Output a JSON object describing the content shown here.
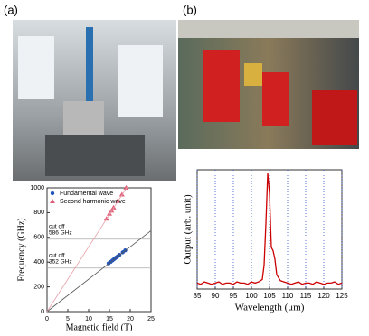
{
  "panel_labels": [
    "(a)",
    "(b)"
  ],
  "chart_data": [
    {
      "type": "scatter",
      "xlabel": "Magnetic field (T)",
      "ylabel": "Frequency (GHz)",
      "xlim": [
        0,
        25
      ],
      "xticks": [
        0,
        5,
        10,
        15,
        20,
        25
      ],
      "ylim": [
        0,
        1000
      ],
      "yticks": [
        0,
        200,
        400,
        600,
        800,
        1000
      ],
      "series": [
        {
          "name": "Fundamental wave",
          "color": "#2255bb",
          "style": "circle",
          "x": [
            14.8,
            15.3,
            15.7,
            16,
            16.3,
            16.6,
            17,
            17.4,
            18.2,
            18.8
          ],
          "values": [
            390,
            402,
            413,
            421,
            429,
            437,
            447,
            458,
            479,
            495
          ]
        },
        {
          "name": "Second harmonic wave",
          "color": "#e0607a",
          "style": "triangle",
          "x": [
            14.3,
            15,
            15.5,
            16,
            17,
            18,
            19
          ],
          "values": [
            750,
            790,
            815,
            840,
            895,
            945,
            1000
          ]
        },
        {
          "color": "#555555",
          "style": "line",
          "x": [
            0,
            25
          ],
          "values": [
            0,
            655
          ]
        },
        {
          "color": "#e8a0a8",
          "style": "line",
          "x": [
            0,
            19.5
          ],
          "values": [
            0,
            1020
          ]
        }
      ],
      "cutoffs": [
        {
          "value": 586,
          "label": [
            "cut off",
            "586 GHz"
          ]
        },
        {
          "value": 352,
          "label": [
            "cut off",
            "352 GHz"
          ]
        }
      ]
    },
    {
      "type": "line",
      "xlabel": "Wavelength (μm)",
      "ylabel": "Output (arb. unit)",
      "xlim": [
        85,
        125
      ],
      "xticks": [
        85,
        90,
        95,
        100,
        105,
        110,
        115,
        120,
        125
      ],
      "ylim": [
        0,
        1
      ],
      "grid": true,
      "series": [
        {
          "color": "#cc0000",
          "x": [
            85,
            86,
            87,
            88,
            89,
            90,
            91,
            92,
            93,
            94,
            95,
            96,
            97,
            98,
            99,
            100,
            101,
            102,
            103,
            103.5,
            104,
            104.5,
            105,
            105.5,
            106,
            106.5,
            107,
            108,
            109,
            110,
            111,
            112,
            113,
            114,
            115,
            116,
            117,
            118,
            119,
            120,
            121,
            122,
            123,
            124,
            125
          ],
          "values": [
            0.05,
            0.04,
            0.06,
            0.05,
            0.04,
            0.05,
            0.06,
            0.04,
            0.05,
            0.05,
            0.04,
            0.06,
            0.05,
            0.05,
            0.04,
            0.06,
            0.05,
            0.06,
            0.08,
            0.2,
            0.55,
            0.97,
            0.8,
            0.35,
            0.32,
            0.25,
            0.12,
            0.07,
            0.06,
            0.05,
            0.04,
            0.05,
            0.06,
            0.04,
            0.05,
            0.05,
            0.04,
            0.06,
            0.05,
            0.04,
            0.05,
            0.05,
            0.06,
            0.04,
            0.05
          ]
        }
      ]
    }
  ]
}
